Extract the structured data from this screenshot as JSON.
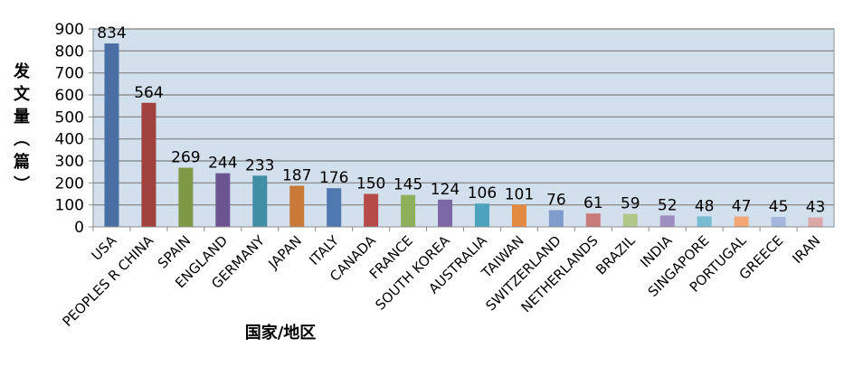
{
  "chart_data": {
    "type": "bar",
    "xlabel": "国家/地区",
    "ylabel": "发文量（篇）",
    "ylim": [
      0,
      900
    ],
    "yticks": [
      0,
      100,
      200,
      300,
      400,
      500,
      600,
      700,
      800,
      900
    ],
    "grid": true,
    "categories": [
      "USA",
      "PEOPLES R CHINA",
      "SPAIN",
      "ENGLAND",
      "GERMANY",
      "JAPAN",
      "ITALY",
      "CANADA",
      "FRANCE",
      "SOUTH KOREA",
      "AUSTRALIA",
      "TAIWAN",
      "SWITZERLAND",
      "NETHERLANDS",
      "BRAZIL",
      "INDIA",
      "SINGAPORE",
      "PORTUGAL",
      "GREECE",
      "IRAN"
    ],
    "values": [
      834,
      564,
      269,
      244,
      233,
      187,
      176,
      150,
      145,
      124,
      106,
      101,
      76,
      61,
      59,
      52,
      48,
      47,
      45,
      43
    ],
    "colors": [
      "#4a6fa5",
      "#a0413e",
      "#7c9a46",
      "#6a5590",
      "#3f8ea5",
      "#c97a38",
      "#4f77b0",
      "#b64a48",
      "#8fb05a",
      "#7c68a4",
      "#4ca3bd",
      "#e48b43",
      "#7f9ccd",
      "#c97b7a",
      "#afc889",
      "#9e8ebf",
      "#78bcd2",
      "#f3a774",
      "#a3b7dc",
      "#dba6a6"
    ],
    "plot_background": "#d2dfed",
    "grid_color": "#7f7f7f"
  }
}
